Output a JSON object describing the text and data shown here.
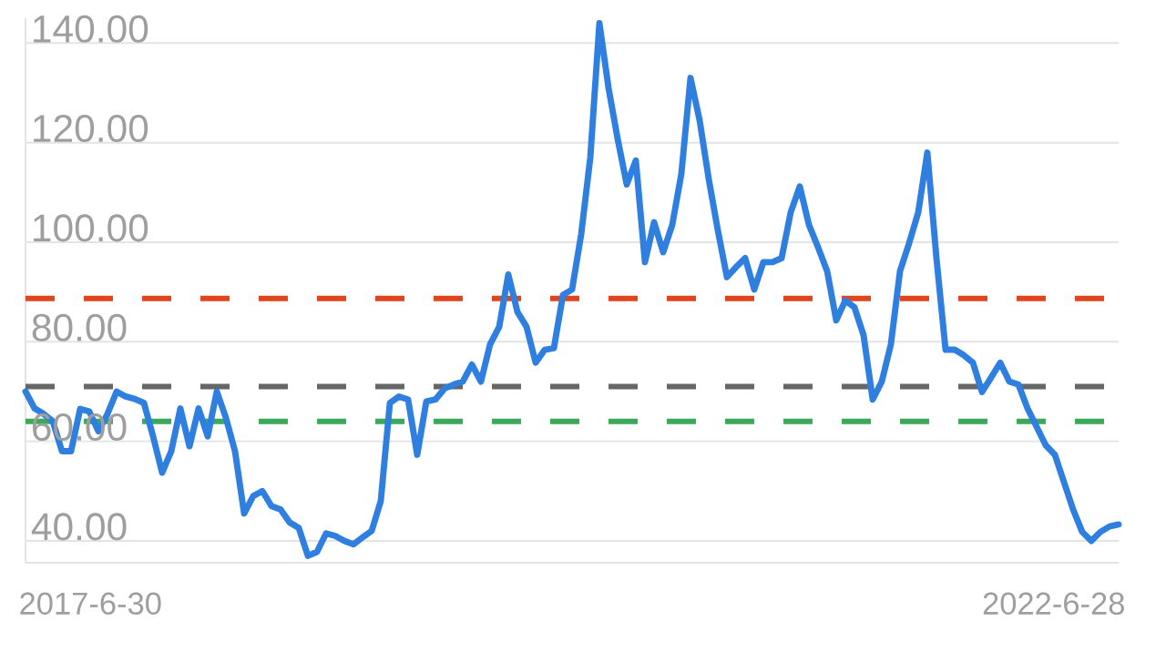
{
  "chart_data": {
    "type": "line",
    "annotations": [
      "2017-6-30",
      "2022-6-28"
    ],
    "categories": [
      null,
      null,
      null,
      null,
      null,
      null,
      null,
      null,
      null,
      null,
      null,
      null,
      null,
      null,
      null,
      null,
      null,
      null,
      null,
      null,
      null,
      null,
      null,
      null,
      null,
      null,
      null,
      null,
      null,
      null,
      null,
      null,
      null,
      null,
      null,
      null,
      null,
      null,
      null,
      null,
      null,
      null,
      null,
      null,
      null,
      null,
      null,
      null,
      null,
      null,
      null,
      null,
      null,
      null,
      null,
      null,
      null,
      null,
      null,
      null,
      null,
      null,
      null,
      null,
      null,
      null,
      null,
      null,
      null,
      null,
      null,
      null,
      null,
      null,
      null,
      null,
      null,
      null,
      null,
      null,
      null,
      null,
      null,
      null,
      null,
      null,
      null,
      null,
      null,
      null,
      null,
      null,
      null,
      null,
      null,
      null,
      null,
      null,
      null,
      null,
      null,
      null,
      null,
      null,
      null,
      null,
      null,
      null,
      null,
      null,
      null,
      null,
      null,
      null,
      null,
      null,
      null,
      null,
      null,
      null,
      null
    ],
    "series": [
      {
        "color": "#2f7fe0",
        "values": [
          70,
          66.6,
          65.5,
          64,
          58,
          58,
          66.5,
          66,
          62,
          65.5,
          70,
          69,
          68.5,
          67.7,
          61,
          53.7,
          58,
          66.6,
          59,
          66.6,
          61,
          70,
          64.7,
          58,
          45.5,
          49,
          50,
          47,
          46.3,
          43.7,
          42.6,
          37,
          37.8,
          41.5,
          41,
          40,
          39.3,
          40.7,
          42,
          48,
          67.7,
          69,
          68.4,
          57.3,
          68,
          68.4,
          70.6,
          71.4,
          72,
          75.4,
          72,
          79.5,
          83,
          93.5,
          86,
          83,
          75.8,
          78.4,
          78.7,
          89.4,
          90.5,
          101.6,
          117,
          144,
          131,
          120.8,
          111.6,
          116.4,
          96,
          104,
          98,
          103.5,
          113.8,
          133,
          124.5,
          112.7,
          102.4,
          93,
          95,
          96.8,
          90.5,
          96,
          96,
          96.8,
          106,
          111.2,
          103.5,
          99,
          94.2,
          84.3,
          88.3,
          86.9,
          81.3,
          68.4,
          72,
          79.5,
          94.2,
          99.8,
          106,
          118,
          96.8,
          78.4,
          78.4,
          77.3,
          75.8,
          69.9,
          72.8,
          75.8,
          72,
          71.4,
          66.6,
          62.9,
          59.2,
          57.3,
          51.8,
          46.3,
          41.8,
          40,
          41.8,
          42.9,
          43.3
        ]
      }
    ],
    "ylim": [
      35.6,
      145
    ],
    "yticks": [
      {
        "value": 40,
        "label": "40.00"
      },
      {
        "value": 60,
        "label": "60.00"
      },
      {
        "value": 80,
        "label": "80.00"
      },
      {
        "value": 100,
        "label": "100.00"
      },
      {
        "value": 120,
        "label": "120.00"
      },
      {
        "value": 140,
        "label": "140.00"
      }
    ],
    "grid": "y",
    "ref_lines": [
      {
        "axis": "y",
        "value": 88.7,
        "color": "#e0461e",
        "line_style": "dashed"
      },
      {
        "axis": "y",
        "value": 71,
        "color": "#666666",
        "line_style": "dashed"
      },
      {
        "axis": "y",
        "value": 64,
        "color": "#3aaa5a",
        "line_style": "dashed"
      }
    ]
  }
}
